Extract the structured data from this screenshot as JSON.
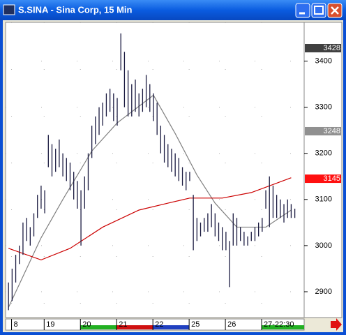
{
  "chart_data": {
    "type": "hilo",
    "title": "S.SINA - Sina Corp, 15 Min",
    "high": [
      2920,
      2950,
      2980,
      3000,
      3050,
      3060,
      3040,
      3070,
      3110,
      3130,
      3120,
      3240,
      3220,
      3210,
      3230,
      3200,
      3190,
      3180,
      3160,
      3140,
      3120,
      3150,
      3200,
      3260,
      3280,
      3300,
      3310,
      3330,
      3340,
      3330,
      3320,
      3460,
      3420,
      3380,
      3350,
      3360,
      3330,
      3340,
      3370,
      3350,
      3330,
      3310,
      3260,
      3240,
      3220,
      3210,
      3200,
      3190,
      3170,
      3160,
      3160,
      3110,
      3060,
      3050,
      3060,
      3070,
      3090,
      3070,
      3050,
      3040,
      3030,
      3010,
      3070,
      3060,
      3040,
      3030,
      3020,
      3030,
      3040,
      3050,
      3060,
      3120,
      3150,
      3130,
      3110,
      3100,
      3090,
      3100,
      3090,
      3080
    ],
    "low": [
      2860,
      2880,
      2920,
      2960,
      2980,
      3010,
      3000,
      3020,
      3060,
      3080,
      3070,
      3170,
      3150,
      3160,
      3170,
      3150,
      3140,
      3120,
      3100,
      3080,
      3000,
      3080,
      3120,
      3190,
      3220,
      3240,
      3260,
      3280,
      3290,
      3270,
      3260,
      3380,
      3300,
      3280,
      3280,
      3290,
      3280,
      3290,
      3300,
      3290,
      3270,
      3240,
      3200,
      3180,
      3170,
      3160,
      3150,
      3140,
      3130,
      3120,
      3140,
      2990,
      3010,
      3020,
      3030,
      3030,
      3040,
      3020,
      3010,
      2990,
      2990,
      2910,
      3000,
      3000,
      3010,
      3000,
      3000,
      3010,
      3010,
      3020,
      3030,
      3080,
      3040,
      3060,
      3060,
      3060,
      3050,
      3060,
      3060,
      3060
    ],
    "color": "#1a1a40",
    "lines": [
      {
        "color": "#808080",
        "x": [
          0,
          9,
          15,
          23,
          30,
          40,
          46,
          52,
          57,
          63,
          71,
          78
        ],
        "values": [
          2866,
          3017,
          3100,
          3205,
          3266,
          3326,
          3243,
          3153,
          3092,
          3040,
          3040,
          3077
        ]
      },
      {
        "color": "#cc0000",
        "x": [
          0,
          9,
          17,
          26,
          36,
          44,
          50,
          59,
          67,
          78
        ],
        "values": [
          2994,
          2969,
          2994,
          3040,
          3077,
          3092,
          3103,
          3103,
          3115,
          3147
        ]
      }
    ],
    "price_labels": [
      {
        "value": 3428,
        "color": "#404040"
      },
      {
        "value": 3248,
        "color": "#909090"
      },
      {
        "value": 3145,
        "color": "#ff1010"
      }
    ],
    "xlim": [
      -0.8,
      81
    ],
    "xticks": [
      {
        "value": 2,
        "label": "8"
      },
      {
        "value": 11,
        "label": "19"
      },
      {
        "value": 21,
        "label": "20"
      },
      {
        "value": 31,
        "label": "21"
      },
      {
        "value": 41,
        "label": "22"
      },
      {
        "value": 51,
        "label": "25"
      },
      {
        "value": 61,
        "label": "26"
      },
      {
        "value": 71,
        "label": "27-22:30"
      }
    ],
    "xtick_colors": [
      "#ffffff",
      "#ffffff",
      "#22b022",
      "#d01010",
      "#2040c0",
      "#ffffff",
      "#ffffff",
      "#22b022"
    ],
    "ylim": [
      2844,
      3484
    ],
    "yticks": [
      2900,
      3000,
      3100,
      3200,
      3300,
      3400
    ],
    "grid": true
  }
}
